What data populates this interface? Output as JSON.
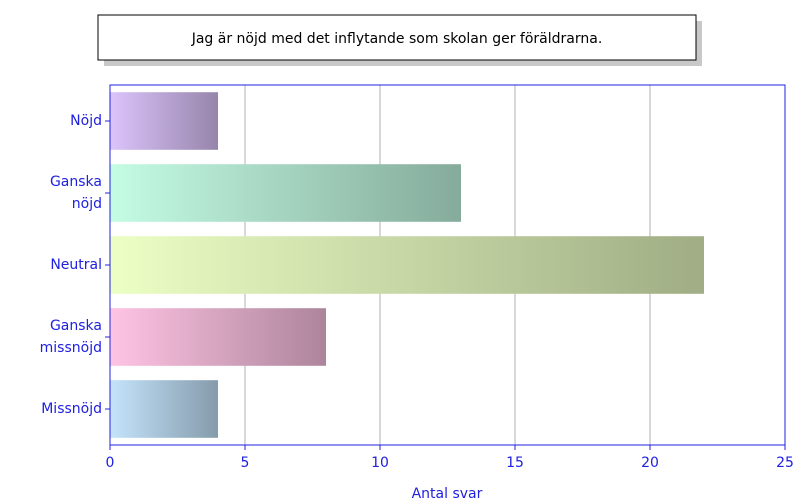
{
  "chart_data": {
    "type": "bar",
    "orientation": "horizontal",
    "title": "Jag är nöjd med det inflytande som skolan ger föräldrarna.",
    "categories": [
      "Nöjd",
      "Ganska nöjd",
      "Neutral",
      "Ganska missnöjd",
      "Missnöjd"
    ],
    "values": [
      4,
      13,
      22,
      8,
      4
    ],
    "colors": [
      "#dcc4fc",
      "#c4fce4",
      "#ecffc4",
      "#ffc4e4",
      "#c4e4fc"
    ],
    "xlabel": "Antal svar",
    "xlim": [
      0,
      25
    ],
    "xticks": [
      0,
      5,
      10,
      15,
      20,
      25
    ],
    "grid": true
  }
}
